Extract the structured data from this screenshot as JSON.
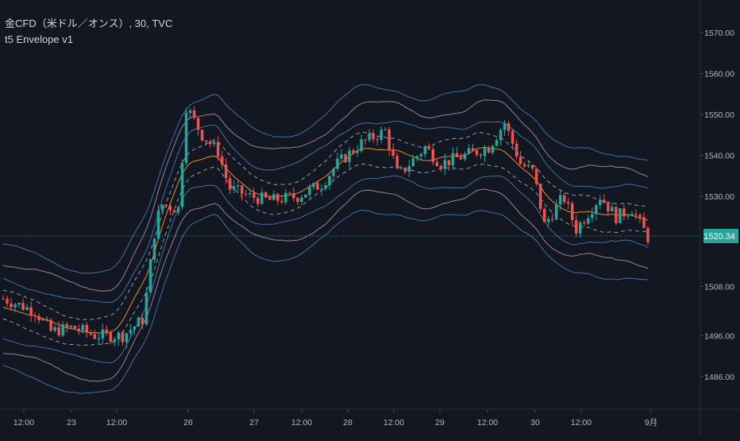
{
  "legend": {
    "symbol_line": "金CFD（米ドル／オンス）, 30, TVC",
    "indicator_line": "t5 Envelope v1"
  },
  "colors": {
    "background": "#131722",
    "up_candle": "#26a69a",
    "down_candle": "#ef5350",
    "price_line": "#26a69a",
    "ma_line": "#e08a2c",
    "envelope_blue": "#4f8fd6",
    "envelope_pink": "#c9a3cf",
    "envelope_dashed": "#c8c8d2",
    "axis_text": "#b2b5be",
    "grid": "#1e2230"
  },
  "chart_data": {
    "type": "candlestick",
    "title": "金CFD（米ドル／オンス）, 30, TVC",
    "indicator": "t5 Envelope v1",
    "timeframe": "30",
    "ylim": [
      1478,
      1578
    ],
    "yticks": [
      1486.0,
      1496.0,
      1508.0,
      1520.34,
      1530.0,
      1540.0,
      1550.0,
      1560.0,
      1570.0
    ],
    "ytick_labels": [
      "1486.00",
      "1496.00",
      "1508.00",
      "1520.34",
      "1530.00",
      "1540.00",
      "1550.00",
      "1560.00",
      "1570.00"
    ],
    "last_price": 1520.34,
    "last_price_label": "1520.34",
    "xticks": [
      {
        "label": "12:00",
        "pos": 0
      },
      {
        "label": "23",
        "pos": 1
      },
      {
        "label": "12:00",
        "pos": 2
      },
      {
        "label": "26",
        "pos": 3
      },
      {
        "label": "27",
        "pos": 4
      },
      {
        "label": "12:00",
        "pos": 5
      },
      {
        "label": "28",
        "pos": 6
      },
      {
        "label": "12:00",
        "pos": 7
      },
      {
        "label": "29",
        "pos": 8
      },
      {
        "label": "12:00",
        "pos": 9
      },
      {
        "label": "30",
        "pos": 10
      },
      {
        "label": "12:00",
        "pos": 11
      },
      {
        "label": "9月",
        "pos": 12
      }
    ],
    "close_anchors": [
      {
        "t": 0.0,
        "v": 1505
      },
      {
        "t": 2.0,
        "v": 1502
      },
      {
        "t": 3.0,
        "v": 1497
      },
      {
        "t": 4.4,
        "v": 1498
      },
      {
        "t": 5.8,
        "v": 1496
      },
      {
        "t": 7.5,
        "v": 1496
      },
      {
        "t": 8.8,
        "v": 1500
      },
      {
        "t": 9.6,
        "v": 1524
      },
      {
        "t": 10.0,
        "v": 1528
      },
      {
        "t": 11.0,
        "v": 1527
      },
      {
        "t": 11.5,
        "v": 1552
      },
      {
        "t": 12.5,
        "v": 1545
      },
      {
        "t": 13.5,
        "v": 1541
      },
      {
        "t": 14.2,
        "v": 1532
      },
      {
        "t": 15.5,
        "v": 1530
      },
      {
        "t": 16.8,
        "v": 1529
      },
      {
        "t": 18.5,
        "v": 1530
      },
      {
        "t": 20.0,
        "v": 1533
      },
      {
        "t": 21.0,
        "v": 1538
      },
      {
        "t": 22.5,
        "v": 1543
      },
      {
        "t": 24.0,
        "v": 1546
      },
      {
        "t": 24.8,
        "v": 1535
      },
      {
        "t": 26.5,
        "v": 1542
      },
      {
        "t": 27.5,
        "v": 1538
      },
      {
        "t": 29.0,
        "v": 1540
      },
      {
        "t": 30.5,
        "v": 1542
      },
      {
        "t": 31.5,
        "v": 1548
      },
      {
        "t": 32.5,
        "v": 1538
      },
      {
        "t": 33.3,
        "v": 1536
      },
      {
        "t": 34.0,
        "v": 1523
      },
      {
        "t": 35.2,
        "v": 1530
      },
      {
        "t": 36.0,
        "v": 1522
      },
      {
        "t": 37.5,
        "v": 1530
      },
      {
        "t": 38.5,
        "v": 1525
      },
      {
        "t": 39.5,
        "v": 1527
      },
      {
        "t": 40.5,
        "v": 1520
      }
    ],
    "t_max": 40.6,
    "series": [
      {
        "name": "",
        "role": "ma",
        "offset": 0,
        "style": "solid",
        "color_key": "ma_line"
      },
      {
        "name": "",
        "role": "envelope",
        "offset": 3.5,
        "style": "dashed",
        "color_key": "envelope_dashed"
      },
      {
        "name": "",
        "role": "envelope",
        "offset": -3.5,
        "style": "dashed",
        "color_key": "envelope_dashed"
      },
      {
        "name": "",
        "role": "envelope",
        "offset": 7,
        "style": "solid",
        "color_key": "envelope_blue"
      },
      {
        "name": "",
        "role": "envelope",
        "offset": -7,
        "style": "solid",
        "color_key": "envelope_blue"
      },
      {
        "name": "",
        "role": "envelope",
        "offset": 11,
        "style": "solid",
        "color_key": "envelope_pink"
      },
      {
        "name": "",
        "role": "envelope",
        "offset": -11,
        "style": "solid",
        "color_key": "envelope_pink"
      },
      {
        "name": "",
        "role": "envelope",
        "offset": 15,
        "style": "solid",
        "color_key": "envelope_blue"
      },
      {
        "name": "",
        "role": "envelope",
        "offset": -15,
        "style": "solid",
        "color_key": "envelope_blue"
      }
    ],
    "grid": false,
    "legend_position": "top-left"
  }
}
